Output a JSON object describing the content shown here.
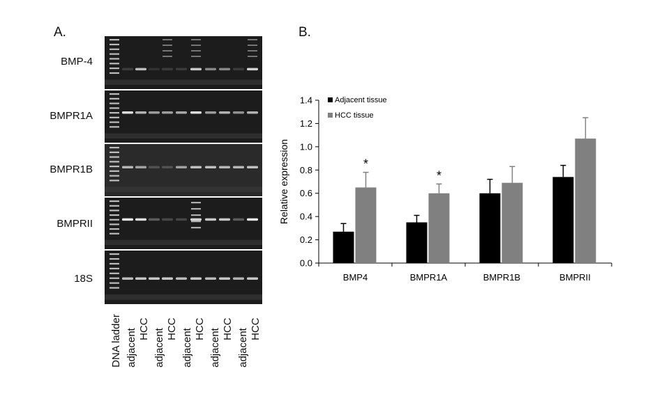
{
  "panels": {
    "a": "A.",
    "b": "B."
  },
  "gel": {
    "gene_labels": [
      "BMP-4",
      "BMPR1A",
      "BMPR1B",
      "BMPRII",
      "18S"
    ],
    "lane_labels": [
      "DNA ladder",
      "adjacent",
      "HCC",
      "adjacent",
      "HCC",
      "adjacent",
      "HCC",
      "adjacent",
      "HCC",
      "adjacent",
      "HCC"
    ]
  },
  "chart_data": {
    "type": "bar",
    "categories": [
      "BMP4",
      "BMPR1A",
      "BMPR1B",
      "BMPRII"
    ],
    "series": [
      {
        "name": "Adjacent tissue",
        "color": "#000000",
        "values": [
          0.27,
          0.35,
          0.6,
          0.74
        ],
        "errors": [
          0.07,
          0.06,
          0.12,
          0.1
        ]
      },
      {
        "name": "HCC tissue",
        "color": "#808080",
        "values": [
          0.65,
          0.6,
          0.69,
          1.07
        ],
        "errors": [
          0.13,
          0.08,
          0.14,
          0.18
        ]
      }
    ],
    "ylabel": "Relative expression",
    "ylim": [
      0,
      1.4
    ],
    "yticks": [
      "0.0",
      "0.2",
      "0.4",
      "0.6",
      "0.8",
      "1.0",
      "1.2",
      "1.4"
    ],
    "annotations": [
      {
        "category": "BMP4",
        "text": "*"
      },
      {
        "category": "BMPR1A",
        "text": "*"
      }
    ],
    "legend": "top-left",
    "grid": false
  }
}
